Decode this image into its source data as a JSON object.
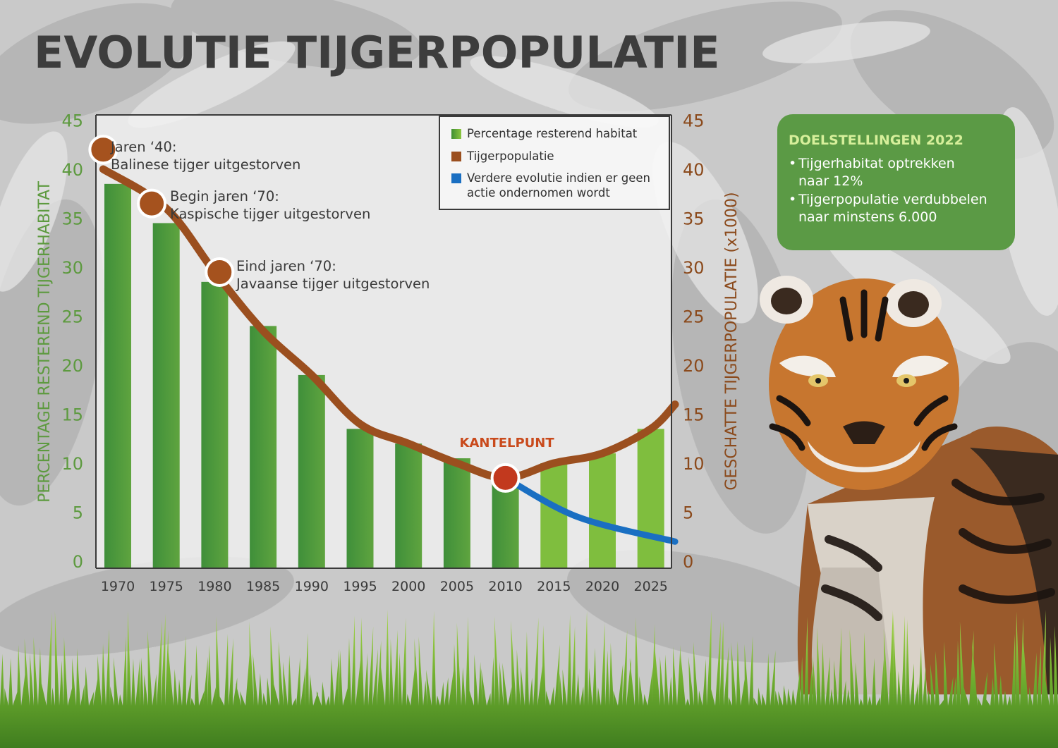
{
  "title": "EVOLUTIE TIJGERPOPULATIE",
  "chart_data": {
    "type": "bar",
    "categories": [
      "1970",
      "1975",
      "1980",
      "1985",
      "1990",
      "1995",
      "2000",
      "2005",
      "2010",
      "2015",
      "2020",
      "2025"
    ],
    "x_ticks": [
      "1970",
      "1975",
      "1980",
      "1985",
      "1990",
      "1995",
      "2000",
      "2005",
      "2010",
      "2015",
      "2020",
      "2025"
    ],
    "left_axis": {
      "label": "PERCENTAGE RESTEREND TIJGERHABITAT",
      "ylim": [
        0,
        45
      ],
      "ticks": [
        "0",
        "5",
        "10",
        "15",
        "20",
        "25",
        "30",
        "35",
        "40",
        "45"
      ],
      "color": "#5d9a3f"
    },
    "right_axis": {
      "label": "GESCHATTE TIJGERPOPULATIE (x1000)",
      "ylim": [
        0,
        45
      ],
      "ticks": [
        "0",
        "5",
        "10",
        "15",
        "20",
        "25",
        "30",
        "35",
        "40",
        "45"
      ],
      "color": "#8b4a1c"
    },
    "series": [
      {
        "name": "Percentage resterend habitat",
        "type": "bar",
        "color": "#4f9a3e",
        "x": [
          1970,
          1975,
          1980,
          1985,
          1990,
          1995,
          2000,
          2005,
          2010,
          2015,
          2020,
          2025
        ],
        "values": [
          38.5,
          34.5,
          28.5,
          24,
          19,
          13.5,
          12,
          10.5,
          9,
          10,
          11,
          13.5
        ]
      },
      {
        "name": "Tijgerpopulatie",
        "type": "line",
        "color": "#9b4f1f",
        "x": [
          1968.5,
          1975,
          1980,
          1985,
          1990,
          1995,
          2000,
          2005,
          2010,
          2015,
          2020,
          2025,
          2027.5
        ],
        "values": [
          40,
          36,
          29.5,
          23.5,
          19,
          14,
          12,
          10,
          8.5,
          10,
          11,
          13.5,
          16
        ]
      },
      {
        "name": "Verdere evolutie indien er geen actie ondernomen wordt",
        "type": "line",
        "color": "#1a6fc2",
        "x": [
          2010,
          2017.5,
          2027.5
        ],
        "values": [
          8.5,
          4.5,
          2
        ]
      }
    ],
    "annotations": [
      {
        "x": 1968.5,
        "y": 42,
        "color": "#a5521e",
        "line1": "Jaren ‘40:",
        "line2": "Balinese tijger uitgestorven"
      },
      {
        "x": 1973.5,
        "y": 36.5,
        "color": "#a5521e",
        "line1": "Begin jaren ‘70:",
        "line2": "Kaspische tijger uitgestorven"
      },
      {
        "x": 1980.5,
        "y": 29.5,
        "color": "#a5521e",
        "line1": "Eind jaren ‘70:",
        "line2": "Javaanse tijger uitgestorven"
      },
      {
        "x": 2010,
        "y": 8.5,
        "color": "#c2391e",
        "label": "KANTELPUNT",
        "label_color": "#c94a1c"
      }
    ],
    "legend": {
      "position": "top-right",
      "entries": [
        "Percentage resterend habitat",
        "Tijgerpopulatie",
        "Verdere evolutie indien er geen actie ondernomen wordt"
      ]
    }
  },
  "legend_text": {
    "habitat": "Percentage resterend habitat",
    "population": "Tijgerpopulatie",
    "future_line1": "Verdere evolutie indien er geen",
    "future_line2": "actie ondernomen wordt"
  },
  "goals": {
    "title": "DOELSTELLINGEN 2022",
    "item1_line1": "Tijgerhabitat optrekken",
    "item1_line2": "naar 12%",
    "item2_line1": "Tijgerpopulatie verdubbelen",
    "item2_line2": "naar minstens 6.000",
    "bullet": "•"
  },
  "colors": {
    "title": "#3d3d3d",
    "goals_bg": "#5b9a45",
    "goals_title": "#d6ef9a"
  }
}
